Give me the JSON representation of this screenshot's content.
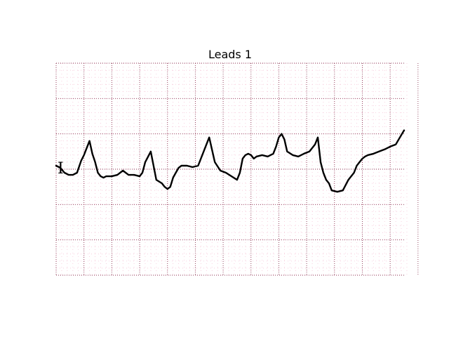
{
  "chart_data": {
    "type": "line",
    "title": "Leads 1",
    "lead_label": "I",
    "xlabel": "",
    "ylabel": "",
    "xlim": [
      0,
      2.5
    ],
    "ylim": [
      -1.5,
      1.5
    ],
    "grid": true,
    "series": [
      {
        "x": [
          0.0,
          0.03,
          0.06,
          0.09,
          0.12,
          0.15,
          0.18,
          0.2,
          0.22,
          0.24,
          0.26,
          0.28,
          0.3,
          0.32,
          0.34,
          0.36,
          0.4,
          0.44,
          0.48,
          0.52,
          0.56,
          0.6,
          0.62,
          0.64,
          0.68,
          0.72,
          0.76,
          0.78,
          0.8,
          0.82,
          0.84,
          0.86,
          0.88,
          0.9,
          0.94,
          0.98,
          1.02,
          1.06,
          1.1,
          1.14,
          1.18,
          1.22,
          1.26,
          1.3,
          1.32,
          1.34,
          1.36,
          1.38,
          1.4,
          1.42,
          1.44,
          1.48,
          1.52,
          1.56,
          1.58,
          1.6,
          1.62,
          1.64,
          1.66,
          1.7,
          1.74,
          1.78,
          1.82,
          1.86,
          1.88,
          1.9,
          1.92,
          1.94,
          1.96,
          1.98,
          2.02,
          2.06,
          2.1,
          2.14,
          2.16,
          2.18,
          2.2,
          2.22,
          2.24,
          2.28,
          2.32,
          2.36,
          2.38,
          2.4,
          2.44,
          2.47,
          2.5
        ],
        "y": [
          0.05,
          0.02,
          -0.05,
          -0.08,
          -0.08,
          -0.05,
          0.12,
          0.2,
          0.3,
          0.4,
          0.22,
          0.1,
          -0.05,
          -0.1,
          -0.12,
          -0.1,
          -0.1,
          -0.08,
          -0.02,
          -0.08,
          -0.08,
          -0.1,
          -0.05,
          0.1,
          0.25,
          -0.15,
          -0.2,
          -0.25,
          -0.28,
          -0.25,
          -0.12,
          -0.05,
          0.02,
          0.05,
          0.05,
          0.03,
          0.05,
          0.25,
          0.45,
          0.1,
          -0.02,
          -0.05,
          -0.1,
          -0.15,
          -0.05,
          0.15,
          0.2,
          0.22,
          0.2,
          0.15,
          0.18,
          0.2,
          0.18,
          0.22,
          0.32,
          0.45,
          0.5,
          0.42,
          0.25,
          0.2,
          0.18,
          0.22,
          0.25,
          0.35,
          0.45,
          0.1,
          -0.05,
          -0.15,
          -0.2,
          -0.3,
          -0.32,
          -0.3,
          -0.15,
          -0.05,
          0.05,
          0.1,
          0.15,
          0.18,
          0.2,
          0.22,
          0.25,
          0.28,
          0.3,
          0.32,
          0.35,
          0.45,
          0.55
        ]
      }
    ]
  }
}
